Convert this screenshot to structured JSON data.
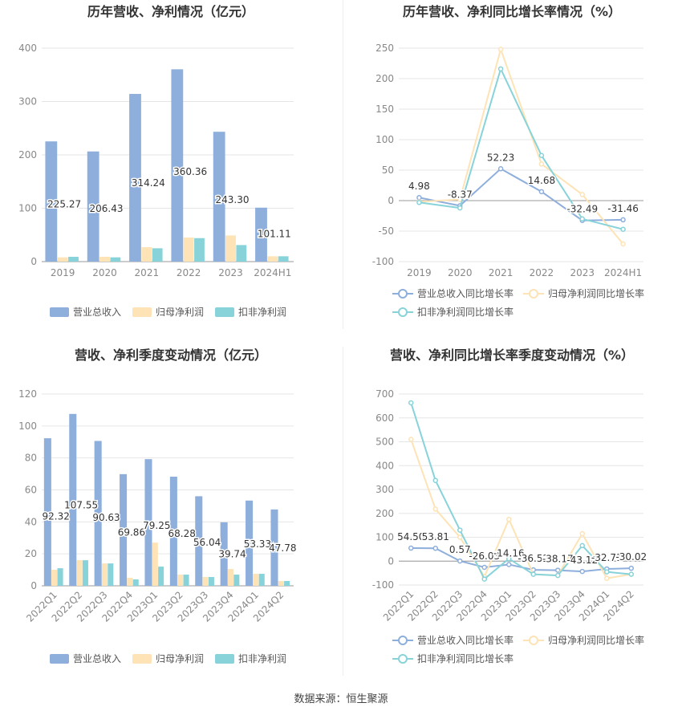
{
  "footer": "数据来源：恒生聚源",
  "colors": {
    "revenue": "#8eaedc",
    "netprofit": "#fde3b5",
    "deducted": "#87d3d9",
    "grid": "#e6e6e6",
    "axis": "#888888",
    "label": "#333333"
  },
  "chart_data": [
    {
      "type": "bar",
      "title": "历年营收、净利情况（亿元）",
      "categories": [
        "2019",
        "2020",
        "2021",
        "2022",
        "2023",
        "2024H1"
      ],
      "ylim": [
        0,
        400
      ],
      "yticks": [
        0,
        100,
        200,
        300,
        400
      ],
      "series": [
        {
          "name": "营业总收入",
          "values": [
            225.27,
            206.43,
            314.24,
            360.36,
            243.3,
            101.11
          ],
          "labels": [
            "225.27",
            "206.43",
            "314.24",
            "360.36",
            "243.30",
            "101.11"
          ]
        },
        {
          "name": "归母净利润",
          "values": [
            8,
            9,
            27,
            45,
            49,
            10
          ]
        },
        {
          "name": "扣非净利润",
          "values": [
            9,
            8,
            25,
            44,
            31,
            10
          ]
        }
      ]
    },
    {
      "type": "line",
      "title": "历年营收、净利同比增长率情况（%）",
      "categories": [
        "2019",
        "2020",
        "2021",
        "2022",
        "2023",
        "2024H1"
      ],
      "ylim": [
        -100,
        250
      ],
      "yticks": [
        -100,
        -50,
        0,
        50,
        100,
        150,
        200,
        250
      ],
      "series": [
        {
          "name": "营业总收入同比增长率",
          "values": [
            4.98,
            -8.37,
            52.23,
            14.68,
            -32.49,
            -31.46
          ],
          "labels": [
            "4.98",
            "-8.37",
            "52.23",
            "14.68",
            "-32.49",
            "-31.46"
          ]
        },
        {
          "name": "归母净利润同比增长率",
          "values": [
            -2,
            2,
            248,
            60,
            10,
            -71
          ]
        },
        {
          "name": "扣非净利润同比增长率",
          "values": [
            -3,
            -12,
            216,
            74,
            -30,
            -47
          ]
        }
      ]
    },
    {
      "type": "bar",
      "title": "营收、净利季度变动情况（亿元）",
      "categories": [
        "2022Q1",
        "2022Q2",
        "2022Q3",
        "2022Q4",
        "2023Q1",
        "2023Q2",
        "2023Q3",
        "2023Q4",
        "2024Q1",
        "2024Q2"
      ],
      "ylim": [
        0,
        120
      ],
      "yticks": [
        0,
        20,
        40,
        60,
        80,
        100,
        120
      ],
      "series": [
        {
          "name": "营业总收入",
          "values": [
            92.32,
            107.55,
            90.63,
            69.86,
            79.25,
            68.28,
            56.04,
            39.74,
            53.33,
            47.78
          ],
          "labels": [
            "92.32",
            "107.55",
            "90.63",
            "69.86",
            "79.25",
            "68.28",
            "56.04",
            "39.74",
            "53.33",
            "47.78"
          ]
        },
        {
          "name": "归母净利润",
          "values": [
            10,
            16,
            14,
            5,
            27,
            7,
            5.5,
            10.5,
            7.5,
            3
          ]
        },
        {
          "name": "扣非净利润",
          "values": [
            11,
            16,
            14,
            4,
            12,
            7,
            5.5,
            7,
            7.5,
            3
          ]
        }
      ]
    },
    {
      "type": "line",
      "title": "营收、净利同比增长率季度变动情况（%）",
      "categories": [
        "2022Q1",
        "2022Q2",
        "2022Q3",
        "2022Q4",
        "2023Q1",
        "2023Q2",
        "2023Q3",
        "2023Q4",
        "2024Q1",
        "2024Q2"
      ],
      "ylim": [
        -100,
        700
      ],
      "yticks": [
        -100,
        0,
        100,
        200,
        300,
        400,
        500,
        600,
        700
      ],
      "series": [
        {
          "name": "营业总收入同比增长率",
          "values": [
            54.5,
            53.81,
            0.57,
            -26.03,
            -14.16,
            -36.52,
            -38.17,
            -43.12,
            -32.71,
            -30.02
          ],
          "labels": [
            "54.50",
            "53.81",
            "0.57",
            "-26.03",
            "-14.16",
            "-36.52",
            "-38.17",
            "-43.12",
            "-32.71",
            "-30.02"
          ]
        },
        {
          "name": "归母净利润同比增长率",
          "values": [
            510,
            218,
            100,
            -65,
            175,
            -55,
            -60,
            115,
            -72,
            -55
          ]
        },
        {
          "name": "扣非净利润同比增长率",
          "values": [
            663,
            338,
            130,
            -75,
            10,
            -55,
            -60,
            65,
            -45,
            -55
          ]
        }
      ]
    }
  ]
}
